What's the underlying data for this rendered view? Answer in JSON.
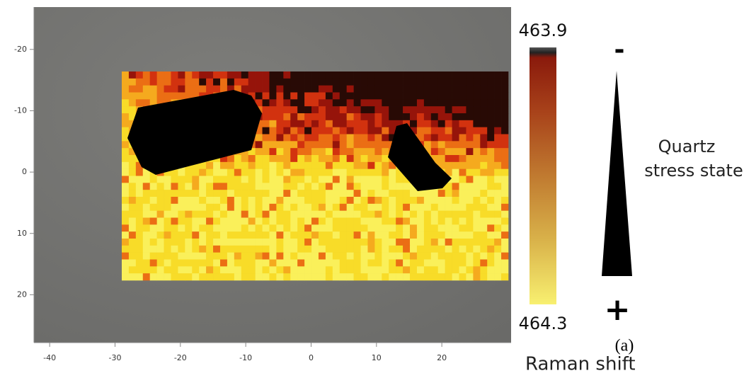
{
  "chart_data": {
    "type": "heatmap",
    "xlabel": "Raman shift",
    "xlim": [
      -42.4,
      30.6
    ],
    "xticks": [
      -40,
      -30,
      -20,
      -10,
      0,
      10,
      20
    ],
    "ylim": [
      -26.9,
      27.8
    ],
    "yticks": [
      -20,
      -10,
      0,
      10,
      20
    ],
    "colorbar": {
      "top": 463.9,
      "bottom": 464.3
    },
    "stress": {
      "minus": "-",
      "plus": "+",
      "title_lines": [
        "Quartz",
        "stress state"
      ]
    },
    "panel_label": "(a)"
  }
}
